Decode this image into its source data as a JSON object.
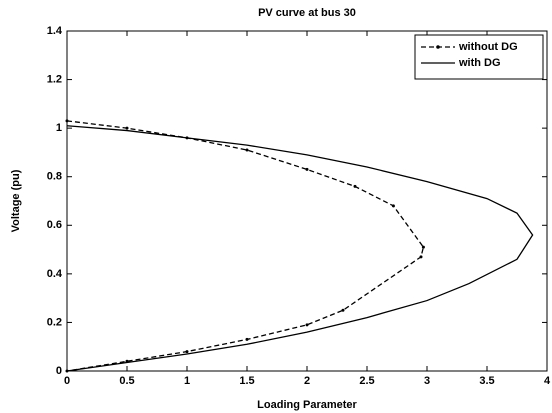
{
  "chart_data": {
    "type": "line",
    "title": "PV curve at bus 30",
    "x_label": "Loading Parameter",
    "y_label": "Voltage (pu)",
    "xlim": [
      0,
      4
    ],
    "xticks": [
      0,
      0.5,
      1,
      1.5,
      2,
      2.5,
      3,
      3.5,
      4
    ],
    "ylim": [
      0,
      1.4
    ],
    "yticks": [
      0,
      0.2,
      0.4,
      0.6,
      0.8,
      1,
      1.2,
      1.4
    ],
    "grid": false,
    "legend": "upper right",
    "series": [
      {
        "name": "without DG",
        "color": "#000000",
        "dash": "dashed",
        "marker": true,
        "x": [
          0,
          0.5,
          1,
          1.5,
          2,
          2.4,
          2.72,
          2.97,
          2.95,
          2.3,
          2,
          1.5,
          1,
          0.5,
          0
        ],
        "values": [
          1.03,
          1,
          0.96,
          0.91,
          0.83,
          0.76,
          0.68,
          0.51,
          0.47,
          0.25,
          0.19,
          0.13,
          0.08,
          0.04,
          0
        ]
      },
      {
        "name": "with DG",
        "color": "#000000",
        "dash": "solid",
        "marker": false,
        "x": [
          0,
          0.5,
          1,
          1.5,
          2,
          2.5,
          3,
          3.5,
          3.75,
          3.88,
          3.75,
          3.35,
          3,
          2.5,
          2,
          1.5,
          1,
          0.5,
          0
        ],
        "values": [
          1.01,
          0.99,
          0.96,
          0.93,
          0.89,
          0.84,
          0.78,
          0.71,
          0.65,
          0.56,
          0.46,
          0.36,
          0.29,
          0.22,
          0.16,
          0.11,
          0.07,
          0.035,
          0
        ]
      }
    ]
  }
}
